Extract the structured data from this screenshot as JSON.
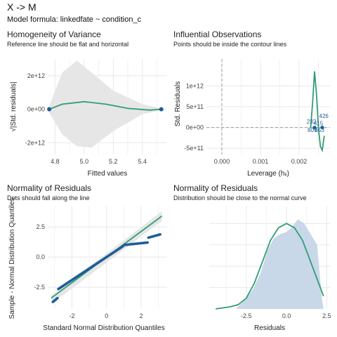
{
  "header": {
    "title": "X -> M",
    "subtitle": "Model formula: linkedfate ~ condition_c"
  },
  "colors": {
    "fit_line": "#2f9e73",
    "points": "#1f5c99",
    "ribbon": "#e6e6e6",
    "density_fill": "#c9d8e8",
    "grid": "#e8e8e8",
    "reference": "#999999"
  },
  "chart_data": [
    {
      "id": "homogeneity",
      "type": "scatter",
      "title": "Homogeneity of Variance",
      "subtitle": "Reference line should be flat and horizontal",
      "xlabel": "Fitted values",
      "ylabel": "√|Std. residuals|",
      "xlim": [
        4.75,
        5.57
      ],
      "ylim": [
        -2700000000000.0,
        3000000000000.0
      ],
      "xticks": [
        4.8,
        5.0,
        5.2,
        5.4
      ],
      "xtick_labels": [
        "4.8",
        "5.0",
        "5.2",
        "5.4"
      ],
      "yticks": [
        -2000000000000.0,
        0,
        2000000000000.0
      ],
      "ytick_labels": [
        "-2e+12",
        "0e+00",
        "2e+12"
      ],
      "points": [
        [
          4.76,
          0
        ],
        [
          5.53,
          0
        ]
      ],
      "fit_line": [
        [
          4.76,
          0
        ],
        [
          4.85,
          300000000000.0
        ],
        [
          5.0,
          450000000000.0
        ],
        [
          5.15,
          300000000000.0
        ],
        [
          5.3,
          50000000000.0
        ],
        [
          5.45,
          -50000000000.0
        ],
        [
          5.53,
          0
        ]
      ],
      "ribbon_upper": [
        [
          4.76,
          200000000000.0
        ],
        [
          4.85,
          2200000000000.0
        ],
        [
          4.95,
          2900000000000.0
        ],
        [
          5.05,
          2200000000000.0
        ],
        [
          5.2,
          1100000000000.0
        ],
        [
          5.4,
          300000000000.0
        ],
        [
          5.53,
          50000000000.0
        ]
      ],
      "ribbon_lower": [
        [
          4.76,
          -200000000000.0
        ],
        [
          4.85,
          -1500000000000.0
        ],
        [
          4.95,
          -2200000000000.0
        ],
        [
          5.05,
          -2300000000000.0
        ],
        [
          5.2,
          -1300000000000.0
        ],
        [
          5.4,
          -300000000000.0
        ],
        [
          5.53,
          -50000000000.0
        ]
      ],
      "grid": true
    },
    {
      "id": "influential",
      "type": "scatter",
      "title": "Influential Observations",
      "subtitle": "Points should be inside the contour lines",
      "xlabel": "Leverage (hᵢᵢ)",
      "ylabel": "Std. Residuals",
      "xlim": [
        -0.0004,
        0.0028
      ],
      "ylim": [
        -650000000000.0,
        1650000000000.0
      ],
      "xticks": [
        0.0,
        0.001,
        0.002
      ],
      "xtick_labels": [
        "0.000",
        "0.001",
        "0.002"
      ],
      "yticks": [
        -500000000000.0,
        0,
        500000000000.0,
        1000000000000.0
      ],
      "ytick_labels": [
        "-5e+11",
        "0e+00",
        "5e+11",
        "1e+12"
      ],
      "points": [
        [
          0.0024,
          0
        ],
        [
          0.0026,
          0
        ]
      ],
      "point_labels": [
        {
          "label": "232",
          "x": 0.00232,
          "y": 95000000000.0
        },
        {
          "label": "426",
          "x": 0.00264,
          "y": 230000000000.0
        },
        {
          "label": "415",
          "x": 0.0025,
          "y": 50000000000.0
        },
        {
          "label": "809",
          "x": 0.00234,
          "y": -110000000000.0
        },
        {
          "label": "653",
          "x": 0.00253,
          "y": -110000000000.0
        }
      ],
      "contour_line": [
        [
          0.0023,
          0
        ],
        [
          0.00235,
          600000000000.0
        ],
        [
          0.0024,
          1350000000000.0
        ],
        [
          0.00245,
          800000000000.0
        ],
        [
          0.0025,
          0
        ],
        [
          0.00255,
          -450000000000.0
        ],
        [
          0.0026,
          -550000000000.0
        ],
        [
          0.00265,
          -200000000000.0
        ]
      ],
      "reference_lines": {
        "x": 0,
        "y": 0
      },
      "grid": true
    },
    {
      "id": "qq",
      "type": "scatter",
      "title": "Normality of Residuals",
      "subtitle": "Dots should fall along the line",
      "xlabel": "Standard Normal Distribution Quantiles",
      "ylabel": "Sample - Normal Distribution Quantiles",
      "xlim": [
        -3.4,
        3.5
      ],
      "ylim": [
        -4.3,
        4.2
      ],
      "xticks": [
        -2,
        0,
        2
      ],
      "xtick_labels": [
        "-2",
        "0",
        "2"
      ],
      "yticks": [
        -2.5,
        0,
        2.5
      ],
      "ytick_labels": [
        "-2.5",
        "0.0",
        "2.5"
      ],
      "reference_line": [
        [
          -3.2,
          -3.4
        ],
        [
          3.2,
          3.4
        ]
      ],
      "points_summary": "monotone sample",
      "grid": true
    },
    {
      "id": "density",
      "type": "area",
      "title": "Normality of Residuals",
      "subtitle": "Distribution should be close to the normal curve",
      "xlabel": "Residuals",
      "ylabel": "",
      "xlim": [
        -4.8,
        2.7
      ],
      "ylim": [
        0,
        0.48
      ],
      "xticks": [
        -2.5,
        0,
        2.5
      ],
      "xtick_labels": [
        "-2.5",
        "0.0",
        "2.5"
      ],
      "density": [
        [
          -3.1,
          0.005
        ],
        [
          -2.6,
          0.04
        ],
        [
          -2.1,
          0.09
        ],
        [
          -1.6,
          0.17
        ],
        [
          -1.2,
          0.27
        ],
        [
          -0.8,
          0.33
        ],
        [
          -0.4,
          0.35
        ],
        [
          0.0,
          0.36
        ],
        [
          0.3,
          0.38
        ],
        [
          0.7,
          0.42
        ],
        [
          1.1,
          0.4
        ],
        [
          1.5,
          0.35
        ],
        [
          1.9,
          0.3
        ],
        [
          2.2,
          0.05
        ],
        [
          2.3,
          0.0
        ]
      ],
      "normal_curve": [
        [
          -4.4,
          0.0
        ],
        [
          -3.5,
          0.01
        ],
        [
          -3.0,
          0.02
        ],
        [
          -2.5,
          0.05
        ],
        [
          -2.0,
          0.12
        ],
        [
          -1.5,
          0.22
        ],
        [
          -1.0,
          0.32
        ],
        [
          -0.5,
          0.38
        ],
        [
          0.0,
          0.4
        ],
        [
          0.5,
          0.38
        ],
        [
          1.0,
          0.32
        ],
        [
          1.5,
          0.22
        ],
        [
          2.0,
          0.12
        ],
        [
          2.3,
          0.06
        ]
      ],
      "grid": true
    }
  ]
}
